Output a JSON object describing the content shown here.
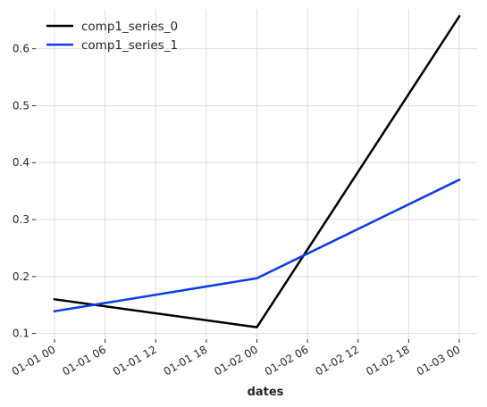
{
  "chart_data": {
    "type": "line",
    "xlabel": "dates",
    "ylabel": "",
    "title": "",
    "x_ticks": [
      "01-01 00",
      "01-01 06",
      "01-01 12",
      "01-01 18",
      "01-02 00",
      "01-02 06",
      "01-02 12",
      "01-02 18",
      "01-03 00"
    ],
    "x": [
      "01-01 00",
      "01-02 00",
      "01-03 00"
    ],
    "y_ticks": [
      "0.1",
      "0.2",
      "0.3",
      "0.4",
      "0.5",
      "0.6"
    ],
    "ylim": [
      0.09,
      0.67
    ],
    "grid": true,
    "legend_position": "top-left",
    "series": [
      {
        "name": "comp1_series_0",
        "color": "#000000",
        "values": [
          0.16,
          0.111,
          0.657
        ]
      },
      {
        "name": "comp1_series_1",
        "color": "#0b3de6",
        "values": [
          0.139,
          0.197,
          0.37
        ]
      }
    ]
  }
}
